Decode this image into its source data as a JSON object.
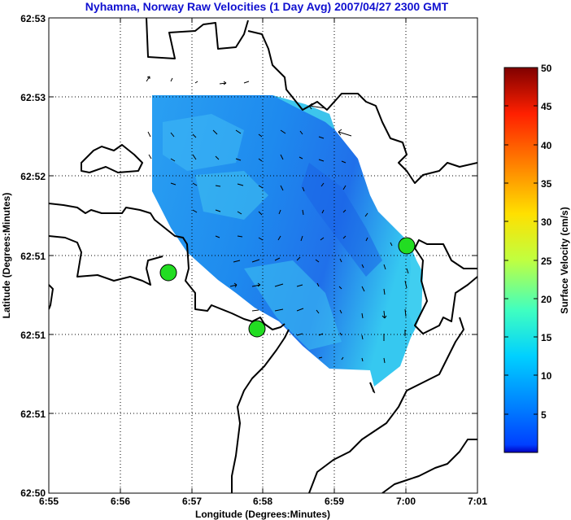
{
  "chart_data": {
    "type": "heatmap",
    "title": "Nyhamna, Norway Raw Velocities (1 Day Avg) 2007/04/27 2300 GMT",
    "xlabel": "Longitude (Degrees:Minutes)",
    "ylabel": "Latitude (Degrees:Minutes)",
    "x_ticks": [
      "6:55",
      "6:56",
      "6:57",
      "6:58",
      "6:59",
      "7:00",
      "7:01"
    ],
    "y_ticks": [
      "62:53",
      "62:53",
      "62:52",
      "62:51",
      "62:51",
      "62:51",
      "62:50"
    ],
    "grid": true,
    "colorbar": {
      "label": "Surface Velocity (cm/s)",
      "ticks": [
        "5",
        "10",
        "15",
        "20",
        "25",
        "30",
        "35",
        "40",
        "45",
        "50"
      ],
      "range": [
        0,
        50
      ],
      "colormap": "jet"
    },
    "colors": {
      "title": "#1010d0",
      "coast": "#000000",
      "sites": "#22dd22"
    },
    "field_speed_range_cm_s": [
      3,
      14
    ],
    "radar_sites": [
      {
        "lon_min": 56.7,
        "lat_rel": 0.278
      },
      {
        "lon_min": 57.93,
        "lat_rel": 0.207
      },
      {
        "lon_min": 60.0,
        "lat_rel": 0.31
      }
    ]
  }
}
